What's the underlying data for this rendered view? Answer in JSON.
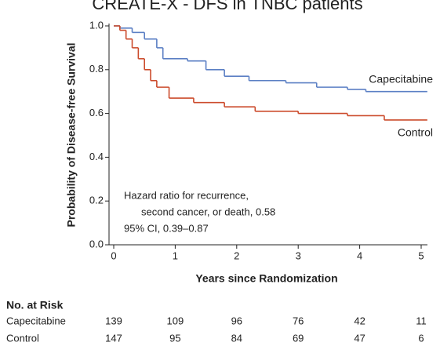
{
  "chart_data": {
    "type": "step",
    "title": "CREATE-X - DFS in TNBC patients",
    "ylabel": "Probability of Disease-free Survival",
    "xlabel": "Years since Randomization",
    "xlim": [
      0,
      5.1
    ],
    "ylim": [
      0,
      1
    ],
    "xticks": [
      0,
      1,
      2,
      3,
      4,
      5
    ],
    "yticks": [
      {
        "value": 0,
        "label": "0.0"
      },
      0.2,
      0.4,
      0.6,
      0.8,
      {
        "value": 1,
        "label": "1.0"
      }
    ],
    "series": [
      {
        "name": "Capecitabine",
        "color": "#5b7fc4",
        "x": [
          0,
          0.1,
          0.3,
          0.5,
          0.7,
          0.8,
          1.2,
          1.5,
          1.8,
          2.2,
          2.8,
          3.3,
          3.8,
          4.1,
          5.1
        ],
        "values": [
          1,
          0.99,
          0.97,
          0.94,
          0.9,
          0.85,
          0.84,
          0.8,
          0.77,
          0.75,
          0.74,
          0.72,
          0.71,
          0.7,
          0.7
        ]
      },
      {
        "name": "Control",
        "color": "#cc4b2c",
        "x": [
          0,
          0.1,
          0.2,
          0.3,
          0.4,
          0.5,
          0.6,
          0.7,
          0.9,
          1.3,
          1.8,
          2.3,
          3.0,
          3.8,
          4.4,
          5.1
        ],
        "values": [
          1,
          0.98,
          0.94,
          0.9,
          0.85,
          0.8,
          0.75,
          0.72,
          0.67,
          0.65,
          0.63,
          0.61,
          0.6,
          0.59,
          0.57,
          0.57
        ]
      }
    ],
    "annotations": [
      "Hazard ratio for recurrence,",
      "second cancer, or death, 0.58",
      "95% CI, 0.39–0.87"
    ],
    "risk_table": {
      "title": "No. at Risk",
      "rows": [
        {
          "name": "Capecitabine",
          "values": [
            "139",
            "109",
            "96",
            "76",
            "42",
            "11"
          ]
        },
        {
          "name": "Control",
          "values": [
            "147",
            "95",
            "84",
            "69",
            "47",
            "6"
          ]
        }
      ]
    }
  }
}
